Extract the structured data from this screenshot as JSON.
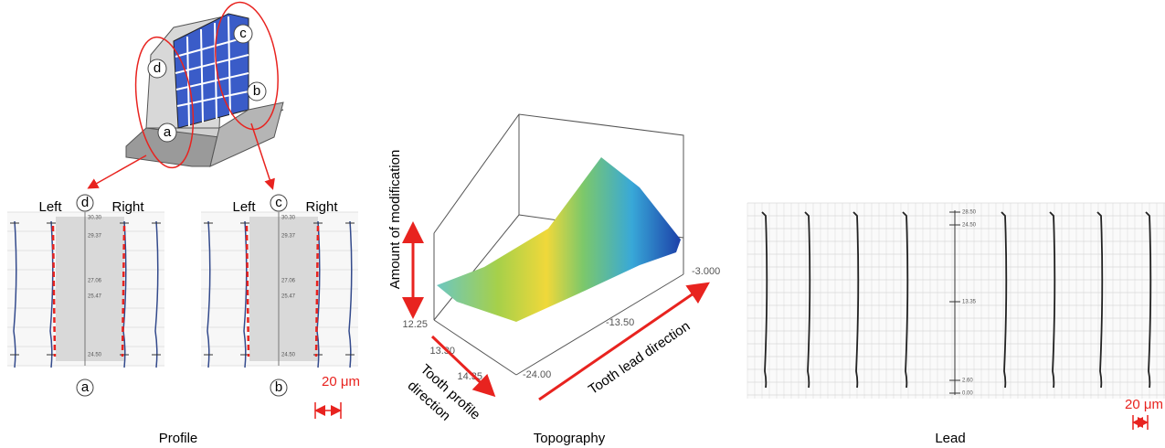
{
  "tooth": {
    "labels": [
      "a",
      "b",
      "c",
      "d"
    ]
  },
  "profile": {
    "charts": [
      {
        "top": "d",
        "left": "Left",
        "right": "Right",
        "bottom": "a",
        "ticks": [
          "30.30",
          "29.37",
          "27.06",
          "25.47",
          "24.50"
        ]
      },
      {
        "top": "c",
        "left": "Left",
        "right": "Right",
        "bottom": "b",
        "ticks": [
          "30.30",
          "29.37",
          "27.06",
          "25.47",
          "24.50"
        ]
      }
    ],
    "scale": "20 μm",
    "caption": "Profile"
  },
  "topography": {
    "z_label": "Amount of modification",
    "x_label": [
      "Tooth profile",
      "direction"
    ],
    "y_label": "Tooth lead direction",
    "x_ticks": [
      "12.25",
      "13.30",
      "14.35"
    ],
    "y_ticks": [
      "-24.00",
      "-13.50",
      "-3.000"
    ],
    "caption": "Topography"
  },
  "lead": {
    "ticks": [
      "28.50",
      "24.50",
      "13.35",
      "2.60",
      "0.00"
    ],
    "scale": "20 μm",
    "caption": "Lead"
  }
}
